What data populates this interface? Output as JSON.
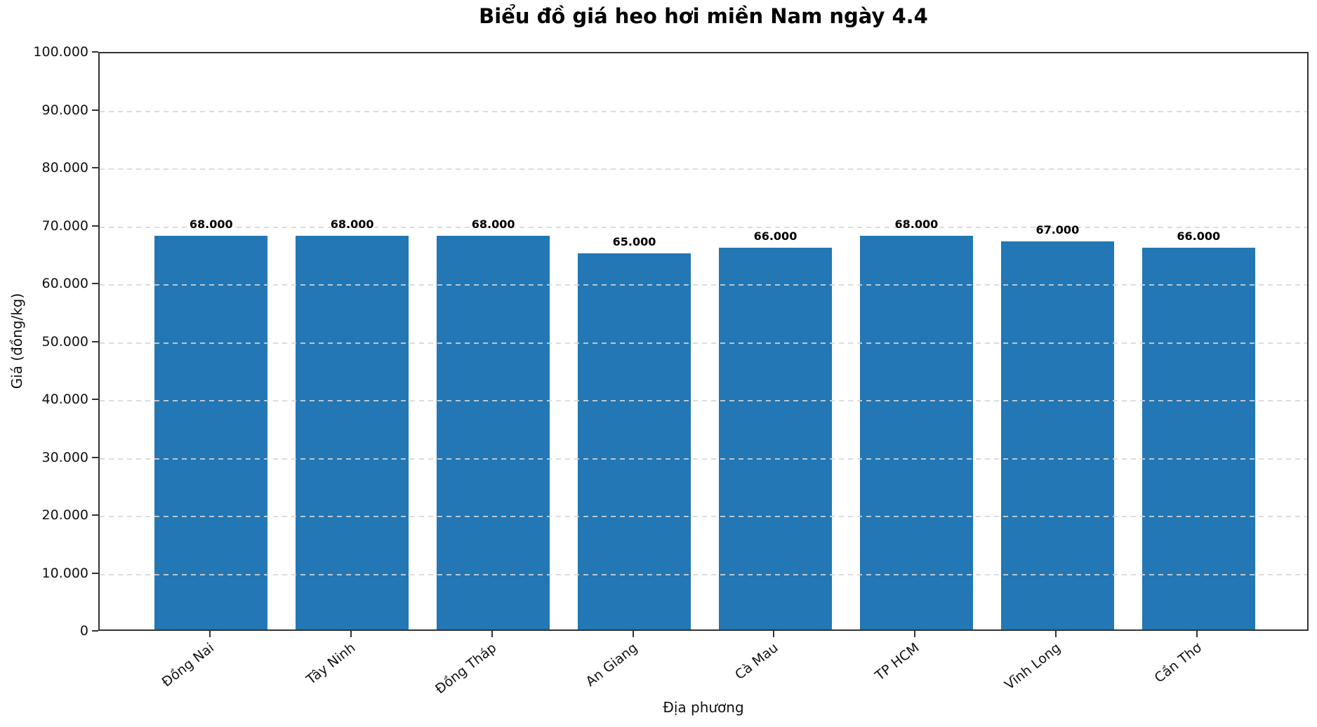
{
  "chart_data": {
    "type": "bar",
    "title": "Biểu đồ giá heo hơi miền Nam ngày 4.4",
    "xlabel": "Địa phương",
    "ylabel": "Giá (đồng/kg)",
    "categories": [
      "Đồng Nai",
      "Tây Ninh",
      "Đồng Tháp",
      "An Giang",
      "Cà Mau",
      "TP HCM",
      "Vĩnh Long",
      "Cần Thơ"
    ],
    "values": [
      68000,
      68000,
      68000,
      65000,
      66000,
      68000,
      67000,
      66000
    ],
    "bar_labels": [
      "68.000",
      "68.000",
      "68.000",
      "65.000",
      "66.000",
      "68.000",
      "67.000",
      "66.000"
    ],
    "ylim": [
      0,
      100000
    ],
    "ytick_step": 10000,
    "ytick_labels": [
      "0",
      "10.000",
      "20.000",
      "30.000",
      "40.000",
      "50.000",
      "60.000",
      "70.000",
      "80.000",
      "90.000",
      "100.000"
    ],
    "legend": "none",
    "grid": "horizontal-dashed",
    "bar_color": "#2277b4",
    "grid_color": "#d6d6d6",
    "axis_color": "#333333",
    "text_color": "#111111"
  }
}
